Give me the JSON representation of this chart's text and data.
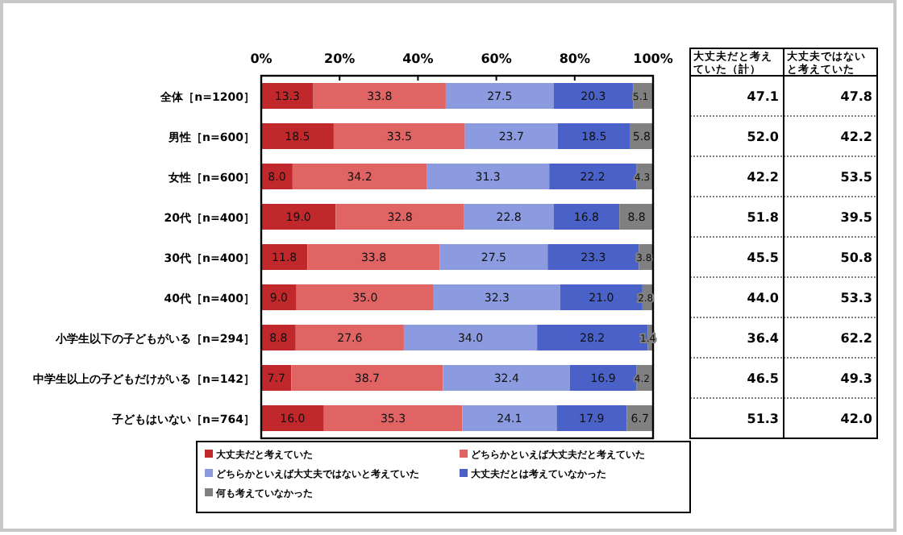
{
  "chart_data": {
    "type": "bar",
    "orientation": "horizontal",
    "stacked": true,
    "legend": "bottom",
    "categories": [
      "全体［n=1200］",
      "男性［n=600］",
      "女性［n=600］",
      "20代［n=400］",
      "30代［n=400］",
      "40代［n=400］",
      "小学生以下の子どもがいる［n=294］",
      "中学生以上の子どもだけがいる［n=142］",
      "子どもはいない［n=764］"
    ],
    "xlim": [
      0,
      100
    ],
    "xticks": [
      {
        "value": 0,
        "label": "0%"
      },
      {
        "value": 20,
        "label": "20%"
      },
      {
        "value": 40,
        "label": "40%"
      },
      {
        "value": 60,
        "label": "60%"
      },
      {
        "value": 80,
        "label": "80%"
      },
      {
        "value": 100,
        "label": "100%"
      }
    ],
    "series": [
      {
        "name": "大丈夫だと考えていた",
        "color": "#c0282c",
        "values": [
          13.3,
          18.5,
          8.0,
          19.0,
          11.8,
          9.0,
          8.8,
          7.7,
          16.0
        ],
        "value_labels": [
          "13.3",
          "18.5",
          "8.0",
          "19.0",
          "11.8",
          "9.0",
          "8.8",
          "7.7",
          "16.0"
        ]
      },
      {
        "name": "どちらかといえば大丈夫だと考えていた",
        "color": "#e06464",
        "values": [
          33.8,
          33.5,
          34.2,
          32.8,
          33.8,
          35.0,
          27.6,
          38.7,
          35.3
        ],
        "value_labels": [
          "33.8",
          "33.5",
          "34.2",
          "32.8",
          "33.8",
          "35.0",
          "27.6",
          "38.7",
          "35.3"
        ]
      },
      {
        "name": "どちらかといえば大丈夫ではないと考えていた",
        "color": "#8c9be0",
        "values": [
          27.5,
          23.7,
          31.3,
          22.8,
          27.5,
          32.3,
          34.0,
          32.4,
          24.1
        ],
        "value_labels": [
          "27.5",
          "23.7",
          "31.3",
          "22.8",
          "27.5",
          "32.3",
          "34.0",
          "32.4",
          "24.1"
        ]
      },
      {
        "name": "大丈夫だとは考えていなかった",
        "color": "#4a62c8",
        "values": [
          20.3,
          18.5,
          22.2,
          16.8,
          23.3,
          21.0,
          28.2,
          16.9,
          17.9
        ],
        "value_labels": [
          "20.3",
          "18.5",
          "22.2",
          "16.8",
          "23.3",
          "21.0",
          "28.2",
          "16.9",
          "17.9"
        ]
      },
      {
        "name": "何も考えていなかった",
        "color": "#808080",
        "values": [
          5.1,
          5.8,
          4.3,
          8.8,
          3.8,
          2.8,
          1.4,
          4.2,
          6.7
        ],
        "value_labels": [
          "5.1",
          "5.8",
          "4.3",
          "8.8",
          "3.8",
          "2.8",
          "1.4",
          "4.2",
          "6.7"
        ]
      }
    ],
    "annotations": [
      "大丈夫だと考えていた（計）",
      "大丈夫ではないと考えていた（計）",
      "47.1",
      "47.8",
      "52.0",
      "42.2",
      "42.2",
      "53.5",
      "51.8",
      "39.5",
      "45.5",
      "50.8",
      "44.0",
      "53.3",
      "36.4",
      "62.2",
      "46.5",
      "49.3",
      "51.3",
      "42.0"
    ]
  }
}
